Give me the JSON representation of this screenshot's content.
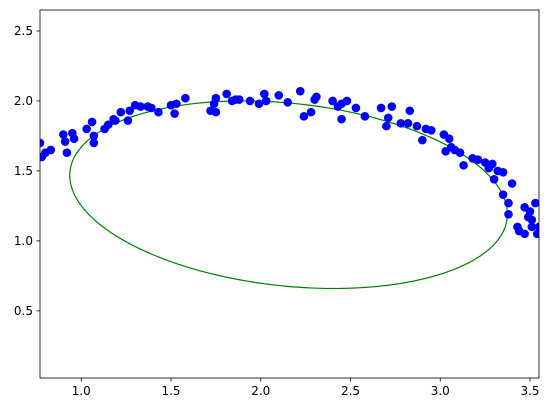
{
  "chart_data": {
    "type": "scatter",
    "title": "",
    "xlabel": "",
    "ylabel": "",
    "xlim": [
      0.77,
      3.55
    ],
    "ylim": [
      0.02,
      2.65
    ],
    "grid": false,
    "legend": "none",
    "x_ticks": [
      1.0,
      1.5,
      2.0,
      2.5,
      3.0,
      3.5
    ],
    "x_tick_labels": [
      "1.0",
      "1.5",
      "2.0",
      "2.5",
      "3.0",
      "3.5"
    ],
    "y_ticks": [
      0.5,
      1.0,
      1.5,
      2.0,
      2.5
    ],
    "y_tick_labels": [
      "0.5",
      "1.0",
      "1.5",
      "2.0",
      "2.5"
    ],
    "series": [
      {
        "kind": "points",
        "color": "#0000ff",
        "marker": "circle",
        "x": [
          0.77,
          0.78,
          0.8,
          0.83,
          0.9,
          0.91,
          0.92,
          0.95,
          0.96,
          1.03,
          1.06,
          1.07,
          1.07,
          1.13,
          1.15,
          1.18,
          1.19,
          1.22,
          1.26,
          1.27,
          1.3,
          1.33,
          1.37,
          1.39,
          1.43,
          1.5,
          1.52,
          1.53,
          1.58,
          1.72,
          1.74,
          1.75,
          1.75,
          1.81,
          1.84,
          1.86,
          1.88,
          1.94,
          1.99,
          2.02,
          2.03,
          2.1,
          2.15,
          2.22,
          2.24,
          2.28,
          2.3,
          2.31,
          2.4,
          2.43,
          2.45,
          2.45,
          2.48,
          2.53,
          2.58,
          2.67,
          2.7,
          2.71,
          2.73,
          2.78,
          2.82,
          2.83,
          2.87,
          2.9,
          2.92,
          2.95,
          3.02,
          3.03,
          3.05,
          3.06,
          3.08,
          3.11,
          3.13,
          3.18,
          3.21,
          3.25,
          3.27,
          3.29,
          3.3,
          3.32,
          3.35,
          3.35,
          3.38,
          3.38,
          3.4,
          3.43,
          3.44,
          3.47,
          3.47,
          3.49,
          3.5,
          3.51,
          3.51,
          3.53,
          3.54,
          3.55
        ],
        "y": [
          1.7,
          1.6,
          1.63,
          1.65,
          1.76,
          1.71,
          1.63,
          1.77,
          1.73,
          1.8,
          1.85,
          1.75,
          1.7,
          1.8,
          1.83,
          1.87,
          1.86,
          1.92,
          1.86,
          1.93,
          1.97,
          1.96,
          1.96,
          1.95,
          1.92,
          1.97,
          1.91,
          1.98,
          2.02,
          1.93,
          1.98,
          2.02,
          1.92,
          2.05,
          2.0,
          2.01,
          2.01,
          2.0,
          1.98,
          2.05,
          2.0,
          2.04,
          1.99,
          2.07,
          1.89,
          1.92,
          2.01,
          2.03,
          2.0,
          1.96,
          1.87,
          1.98,
          2.0,
          1.95,
          1.89,
          1.95,
          1.82,
          1.88,
          1.96,
          1.84,
          1.84,
          1.93,
          1.82,
          1.72,
          1.8,
          1.79,
          1.76,
          1.64,
          1.73,
          1.67,
          1.65,
          1.63,
          1.54,
          1.59,
          1.58,
          1.56,
          1.52,
          1.55,
          1.44,
          1.5,
          1.33,
          1.49,
          1.19,
          1.27,
          1.41,
          1.1,
          1.07,
          1.24,
          1.05,
          1.17,
          1.21,
          1.15,
          1.1,
          1.27,
          1.05,
          1.1
        ]
      },
      {
        "kind": "ellipse",
        "color": "#008000",
        "center": [
          2.155,
          1.33
        ],
        "semi_axes": [
          1.23,
          0.65
        ],
        "angle_deg": -9
      }
    ]
  }
}
